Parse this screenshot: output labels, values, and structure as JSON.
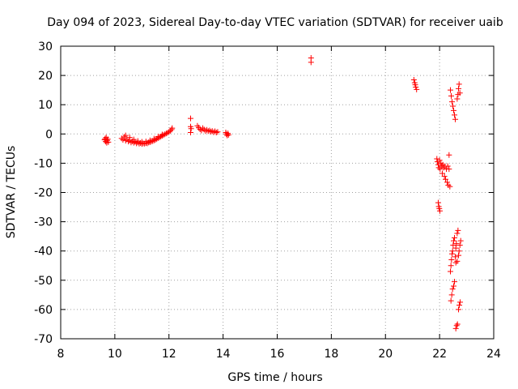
{
  "chart_data": {
    "type": "scatter",
    "title": "Day 094 of 2023, Sidereal Day-to-day VTEC variation (SDTVAR) for receiver uaib",
    "xlabel": "GPS time / hours",
    "ylabel": "SDTVAR / TECUs",
    "xlim": [
      8,
      24
    ],
    "ylim": [
      -70,
      30
    ],
    "xticks": [
      8,
      10,
      12,
      14,
      16,
      18,
      20,
      22,
      24
    ],
    "yticks": [
      -70,
      -60,
      -50,
      -40,
      -30,
      -20,
      -10,
      0,
      10,
      20,
      30
    ],
    "grid": true,
    "marker": "+",
    "marker_color": "#ff0000",
    "series": [
      {
        "name": "SDTVAR",
        "points": [
          [
            9.62,
            -2.0
          ],
          [
            9.64,
            -1.6
          ],
          [
            9.66,
            -2.6
          ],
          [
            9.68,
            -1.2
          ],
          [
            9.7,
            -3.0
          ],
          [
            9.72,
            -2.2
          ],
          [
            9.74,
            -1.8
          ],
          [
            9.76,
            -2.8
          ],
          [
            10.25,
            -1.5
          ],
          [
            10.3,
            -2.0
          ],
          [
            10.35,
            -1.0
          ],
          [
            10.4,
            -2.3
          ],
          [
            10.45,
            -1.8
          ],
          [
            10.5,
            -2.6
          ],
          [
            10.55,
            -2.2
          ],
          [
            10.6,
            -2.9
          ],
          [
            10.65,
            -2.5
          ],
          [
            10.7,
            -3.0
          ],
          [
            10.75,
            -2.7
          ],
          [
            10.8,
            -3.2
          ],
          [
            10.85,
            -2.9
          ],
          [
            10.9,
            -3.3
          ],
          [
            10.95,
            -3.1
          ],
          [
            11.0,
            -3.4
          ],
          [
            11.05,
            -3.2
          ],
          [
            11.1,
            -3.3
          ],
          [
            11.15,
            -3.1
          ],
          [
            11.2,
            -3.2
          ],
          [
            11.25,
            -2.9
          ],
          [
            11.3,
            -2.8
          ],
          [
            11.35,
            -2.6
          ],
          [
            11.4,
            -2.4
          ],
          [
            11.45,
            -2.2
          ],
          [
            11.5,
            -2.0
          ],
          [
            11.55,
            -1.7
          ],
          [
            11.6,
            -1.4
          ],
          [
            11.65,
            -1.2
          ],
          [
            11.7,
            -0.9
          ],
          [
            11.75,
            -0.6
          ],
          [
            11.8,
            -0.4
          ],
          [
            11.85,
            -0.1
          ],
          [
            11.9,
            0.2
          ],
          [
            11.95,
            0.4
          ],
          [
            12.0,
            0.7
          ],
          [
            12.05,
            1.1
          ],
          [
            12.1,
            1.5
          ],
          [
            12.12,
            2.0
          ],
          [
            10.4,
            -0.5
          ],
          [
            10.55,
            -1.2
          ],
          [
            10.7,
            -1.9
          ],
          [
            10.85,
            -2.4
          ],
          [
            11.0,
            -2.7
          ],
          [
            11.15,
            -2.6
          ],
          [
            11.3,
            -2.2
          ],
          [
            11.45,
            -1.6
          ],
          [
            11.6,
            -0.9
          ],
          [
            11.75,
            -0.2
          ],
          [
            12.8,
            5.3
          ],
          [
            12.8,
            2.5
          ],
          [
            12.8,
            0.5
          ],
          [
            12.82,
            1.8
          ],
          [
            13.05,
            2.8
          ],
          [
            13.1,
            2.2
          ],
          [
            13.15,
            1.6
          ],
          [
            13.2,
            1.2
          ],
          [
            13.25,
            2.0
          ],
          [
            13.3,
            1.5
          ],
          [
            13.35,
            1.0
          ],
          [
            13.4,
            1.4
          ],
          [
            13.45,
            1.0
          ],
          [
            13.5,
            1.2
          ],
          [
            13.55,
            0.8
          ],
          [
            13.6,
            1.0
          ],
          [
            13.65,
            0.6
          ],
          [
            13.7,
            0.9
          ],
          [
            13.75,
            0.5
          ],
          [
            13.8,
            0.7
          ],
          [
            14.1,
            0.5
          ],
          [
            14.12,
            0.0
          ],
          [
            14.15,
            -0.5
          ],
          [
            14.18,
            0.2
          ],
          [
            14.2,
            -0.3
          ],
          [
            17.25,
            26.0
          ],
          [
            17.25,
            24.5
          ],
          [
            21.05,
            18.5
          ],
          [
            21.08,
            17.5
          ],
          [
            21.1,
            16.8
          ],
          [
            21.12,
            16.0
          ],
          [
            21.15,
            15.2
          ],
          [
            21.9,
            -8.5
          ],
          [
            21.92,
            -9.5
          ],
          [
            21.95,
            -10.5
          ],
          [
            21.97,
            -11.5
          ],
          [
            22.0,
            -9.0
          ],
          [
            22.02,
            -12.0
          ],
          [
            22.05,
            -10.0
          ],
          [
            22.08,
            -11.0
          ],
          [
            22.1,
            -13.5
          ],
          [
            22.12,
            -10.5
          ],
          [
            22.15,
            -11.5
          ],
          [
            22.18,
            -14.5
          ],
          [
            22.2,
            -11.0
          ],
          [
            22.22,
            -15.5
          ],
          [
            22.25,
            -12.0
          ],
          [
            22.28,
            -16.5
          ],
          [
            22.3,
            -11.0
          ],
          [
            22.32,
            -17.5
          ],
          [
            22.35,
            -12.0
          ],
          [
            22.38,
            -18.0
          ],
          [
            22.35,
            -7.2
          ],
          [
            21.95,
            -23.5
          ],
          [
            21.97,
            -24.8
          ],
          [
            21.99,
            -25.5
          ],
          [
            22.01,
            -26.3
          ],
          [
            22.4,
            15.0
          ],
          [
            22.43,
            13.0
          ],
          [
            22.46,
            11.0
          ],
          [
            22.49,
            9.5
          ],
          [
            22.52,
            8.0
          ],
          [
            22.55,
            6.5
          ],
          [
            22.58,
            5.0
          ],
          [
            22.65,
            12.0
          ],
          [
            22.68,
            13.5
          ],
          [
            22.7,
            15.5
          ],
          [
            22.72,
            17.0
          ],
          [
            22.75,
            14.0
          ],
          [
            22.4,
            -47.0
          ],
          [
            22.42,
            -45.0
          ],
          [
            22.44,
            -43.0
          ],
          [
            22.46,
            -41.0
          ],
          [
            22.48,
            -40.0
          ],
          [
            22.5,
            -38.0
          ],
          [
            22.52,
            -36.5
          ],
          [
            22.55,
            -35.5
          ],
          [
            22.58,
            -42.0
          ],
          [
            22.6,
            -39.0
          ],
          [
            22.62,
            -37.5
          ],
          [
            22.65,
            -34.0
          ],
          [
            22.68,
            -33.0
          ],
          [
            22.7,
            -41.5
          ],
          [
            22.72,
            -40.0
          ],
          [
            22.75,
            -38.0
          ],
          [
            22.78,
            -36.5
          ],
          [
            22.65,
            -43.5
          ],
          [
            22.6,
            -44.0
          ],
          [
            22.42,
            -57.0
          ],
          [
            22.45,
            -55.0
          ],
          [
            22.48,
            -53.0
          ],
          [
            22.52,
            -52.0
          ],
          [
            22.55,
            -50.5
          ],
          [
            22.7,
            -60.0
          ],
          [
            22.73,
            -58.5
          ],
          [
            22.76,
            -57.5
          ],
          [
            22.6,
            -66.5
          ],
          [
            22.63,
            -65.5
          ],
          [
            22.66,
            -65.0
          ]
        ]
      }
    ]
  }
}
